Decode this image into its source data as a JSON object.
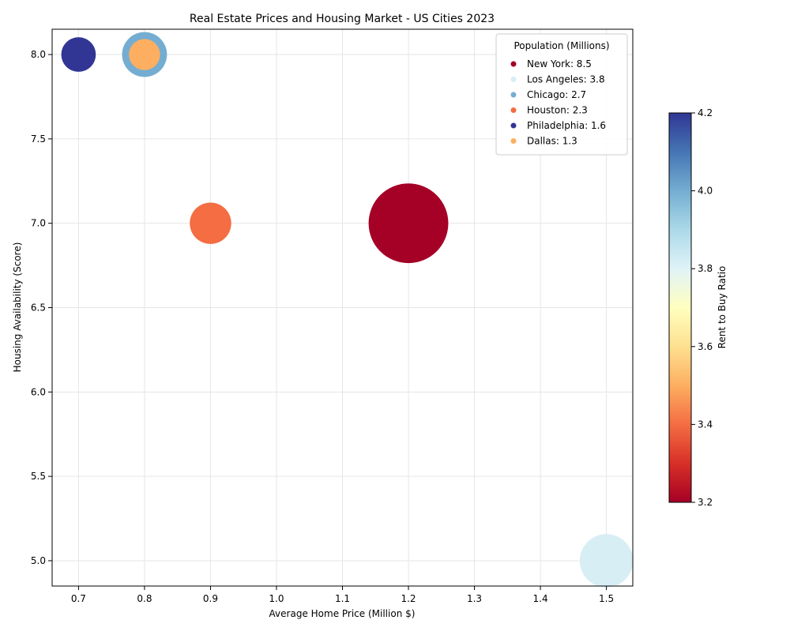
{
  "chart_data": {
    "type": "scatter",
    "title": "Real Estate Prices and Housing Market - US Cities 2023",
    "xlabel": "Average Home Price (Million $)",
    "ylabel": "Housing Availability (Score)",
    "xlim": [
      0.66,
      1.54
    ],
    "ylim": [
      4.85,
      8.15
    ],
    "xticks": [
      "0.7",
      "0.8",
      "0.9",
      "1.0",
      "1.1",
      "1.2",
      "1.3",
      "1.4",
      "1.5"
    ],
    "yticks": [
      "5.0",
      "5.5",
      "6.0",
      "6.5",
      "7.0",
      "7.5",
      "8.0"
    ],
    "grid": true,
    "legend": {
      "title": "Population (Millions)",
      "placement": "top-right",
      "entries": [
        "New York: 8.5",
        "Los Angeles: 3.8",
        "Chicago: 2.7",
        "Houston: 2.3",
        "Philadelphia: 1.6",
        "Dallas: 1.3"
      ]
    },
    "colorbar": {
      "label": "Rent to Buy Ratio",
      "min": 3.2,
      "max": 4.2,
      "ticks": [
        "3.2",
        "3.4",
        "3.6",
        "3.8",
        "4.0",
        "4.2"
      ],
      "colormap": "RdYlBu"
    },
    "points": [
      {
        "city": "New York",
        "x": 1.2,
        "y": 7.0,
        "population": 8.5,
        "rent_to_buy": 3.2,
        "color": "#a50026"
      },
      {
        "city": "Los Angeles",
        "x": 1.5,
        "y": 5.0,
        "population": 3.8,
        "rent_to_buy": 3.85,
        "color": "#d8eef5"
      },
      {
        "city": "Chicago",
        "x": 0.8,
        "y": 8.0,
        "population": 2.7,
        "rent_to_buy": 4.0,
        "color": "#74add1"
      },
      {
        "city": "Houston",
        "x": 0.9,
        "y": 7.0,
        "population": 2.3,
        "rent_to_buy": 3.38,
        "color": "#f46d43"
      },
      {
        "city": "Philadelphia",
        "x": 0.7,
        "y": 8.0,
        "population": 1.6,
        "rent_to_buy": 4.2,
        "color": "#313695"
      },
      {
        "city": "Dallas",
        "x": 0.8,
        "y": 8.0,
        "population": 1.3,
        "rent_to_buy": 3.5,
        "color": "#fdae61"
      }
    ]
  }
}
